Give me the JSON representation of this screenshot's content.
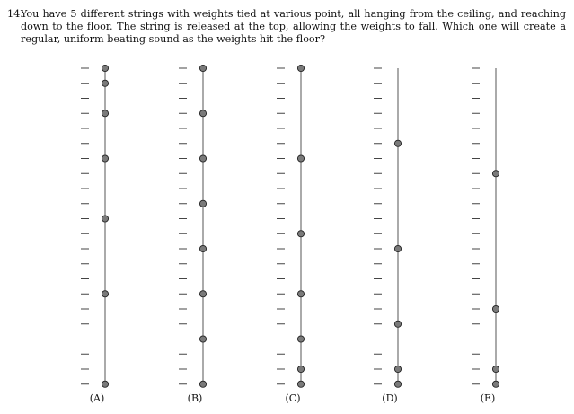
{
  "question": {
    "number": "14.",
    "text": "You have 5 different strings with weights tied at various point, all hanging from the ceiling, and reaching down to the floor. The string is released at the top, allowing the weights to fall. Which one will create a regular, uniform beating sound as the weights hit the floor?"
  },
  "scale": {
    "ticks": 22
  },
  "options": [
    {
      "label": "(A)",
      "weights": [
        0,
        1,
        3,
        6,
        10,
        15,
        21
      ]
    },
    {
      "label": "(B)",
      "weights": [
        0,
        3,
        6,
        9,
        12,
        15,
        18,
        21
      ]
    },
    {
      "label": "(C)",
      "weights": [
        0,
        6,
        11,
        15,
        18,
        20,
        21
      ]
    },
    {
      "label": "(D)",
      "weights": [
        5,
        12,
        17,
        20,
        21
      ]
    },
    {
      "label": "(E)",
      "weights": [
        7,
        16,
        20,
        21
      ]
    }
  ],
  "colors": {
    "weight_fill": "#7a7a7a",
    "line": "#555555",
    "tick": "#444444"
  }
}
